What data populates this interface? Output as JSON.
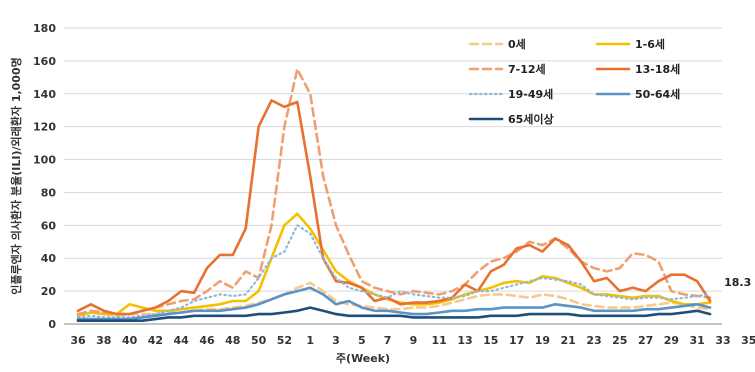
{
  "chart_data": {
    "type": "line",
    "title": "",
    "xlabel": "주(Week)",
    "ylabel": "인플루엔자 의사환자 분율(ILI)/외래환자 1,000명",
    "ylim": [
      0,
      180
    ],
    "yticks": [
      0,
      20,
      40,
      60,
      80,
      100,
      120,
      140,
      160,
      180
    ],
    "x": [
      "36",
      "37",
      "38",
      "39",
      "40",
      "41",
      "42",
      "43",
      "44",
      "45",
      "46",
      "47",
      "48",
      "49",
      "50",
      "51",
      "52",
      "1",
      "2",
      "3",
      "4",
      "5",
      "6",
      "7",
      "8",
      "9",
      "10",
      "11",
      "12",
      "13",
      "14",
      "15",
      "16",
      "17",
      "18",
      "19",
      "20",
      "21",
      "22",
      "23",
      "24",
      "25",
      "26",
      "27",
      "28",
      "29",
      "30",
      "31",
      "32",
      "33"
    ],
    "xtick_labels": [
      "36",
      "38",
      "40",
      "42",
      "44",
      "46",
      "48",
      "50",
      "52",
      "1",
      "3",
      "5",
      "7",
      "9",
      "11",
      "13",
      "15",
      "17",
      "19",
      "21",
      "23",
      "25",
      "27",
      "29",
      "31",
      "33",
      "35"
    ],
    "grid": "horizontal",
    "legend_position": "top-right",
    "annotation": "18.3",
    "series": [
      {
        "name": "0세",
        "color": "#f8c98a",
        "dash": "dash",
        "values": [
          6,
          7,
          6,
          5,
          6,
          6,
          6,
          7,
          7,
          8,
          9,
          9,
          10,
          11,
          13,
          15,
          18,
          22,
          25,
          20,
          14,
          12,
          11,
          10,
          9,
          9,
          10,
          10,
          11,
          13,
          15,
          17,
          18,
          18,
          17,
          16,
          18,
          17,
          15,
          12,
          11,
          10,
          10,
          10,
          11,
          12,
          13,
          12,
          10,
          9
        ]
      },
      {
        "name": "1-6세",
        "color": "#f5c000",
        "dash": "solid",
        "values": [
          5,
          7,
          6,
          6,
          12,
          10,
          8,
          8,
          9,
          10,
          11,
          12,
          14,
          14,
          20,
          40,
          60,
          67,
          58,
          45,
          32,
          26,
          22,
          18,
          15,
          13,
          12,
          12,
          13,
          15,
          18,
          20,
          22,
          25,
          26,
          25,
          29,
          28,
          25,
          22,
          18,
          18,
          17,
          16,
          17,
          17,
          14,
          12,
          12,
          13
        ]
      },
      {
        "name": "7-12세",
        "color": "#f0a070",
        "dash": "dash",
        "values": [
          6,
          8,
          7,
          6,
          6,
          8,
          10,
          12,
          14,
          15,
          20,
          26,
          22,
          32,
          28,
          60,
          120,
          155,
          140,
          90,
          60,
          42,
          26,
          22,
          20,
          18,
          20,
          19,
          18,
          20,
          24,
          32,
          38,
          40,
          44,
          50,
          48,
          52,
          46,
          38,
          34,
          32,
          34,
          43,
          42,
          38,
          20,
          18,
          17,
          16
        ]
      },
      {
        "name": "13-18세",
        "color": "#e87030",
        "dash": "solid",
        "values": [
          8,
          12,
          8,
          6,
          6,
          8,
          10,
          14,
          20,
          19,
          34,
          42,
          42,
          58,
          120,
          136,
          132,
          135,
          90,
          40,
          26,
          25,
          22,
          14,
          16,
          12,
          13,
          13,
          14,
          16,
          24,
          20,
          32,
          36,
          46,
          48,
          44,
          52,
          48,
          38,
          26,
          28,
          20,
          22,
          20,
          26,
          30,
          30,
          26,
          14
        ]
      },
      {
        "name": "19-49세",
        "color": "#8fb8dd",
        "dash": "dot",
        "values": [
          4,
          5,
          4,
          4,
          4,
          5,
          6,
          8,
          10,
          14,
          16,
          18,
          17,
          18,
          28,
          40,
          44,
          60,
          55,
          40,
          28,
          22,
          20,
          18,
          16,
          20,
          18,
          17,
          16,
          16,
          17,
          20,
          20,
          22,
          24,
          26,
          28,
          27,
          26,
          24,
          18,
          17,
          16,
          15,
          16,
          16,
          15,
          16,
          17,
          18
        ]
      },
      {
        "name": "50-64세",
        "color": "#5a93c6",
        "dash": "solid",
        "values": [
          3,
          3,
          3,
          3,
          3,
          4,
          5,
          6,
          7,
          8,
          8,
          8,
          9,
          10,
          12,
          15,
          18,
          20,
          22,
          18,
          12,
          14,
          10,
          8,
          8,
          7,
          6,
          6,
          7,
          8,
          8,
          9,
          9,
          10,
          10,
          10,
          10,
          12,
          11,
          10,
          8,
          8,
          8,
          8,
          9,
          9,
          10,
          11,
          12,
          10
        ]
      },
      {
        "name": "65세이상",
        "color": "#1f4e79",
        "dash": "solid",
        "values": [
          2,
          2,
          2,
          2,
          2,
          2,
          3,
          4,
          4,
          5,
          5,
          5,
          5,
          5,
          6,
          6,
          7,
          8,
          10,
          8,
          6,
          5,
          5,
          5,
          5,
          5,
          4,
          4,
          4,
          4,
          4,
          4,
          5,
          5,
          5,
          6,
          6,
          6,
          6,
          5,
          5,
          5,
          5,
          5,
          5,
          6,
          6,
          7,
          8,
          6
        ]
      }
    ]
  }
}
